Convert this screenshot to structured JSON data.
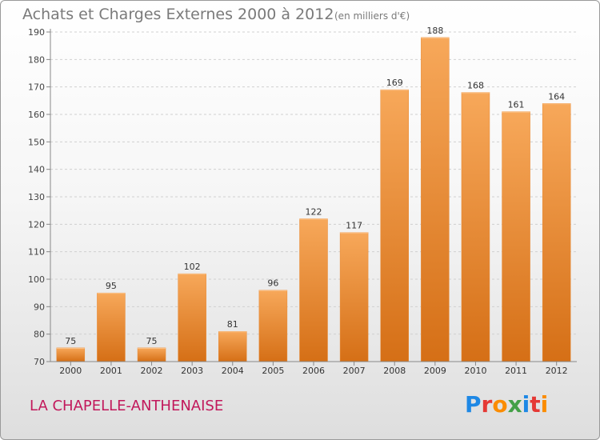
{
  "header": {
    "title": "Achats et Charges Externes 2000 à 2012",
    "unit": "(en milliers d'€)"
  },
  "footer": {
    "commune": "LA CHAPELLE-ANTHENAISE",
    "logo_letters": [
      "P",
      "r",
      "o",
      "x",
      "i",
      "t",
      "i"
    ],
    "logo_colors": [
      "#1e88e5",
      "#e53935",
      "#fb8c00",
      "#43a047",
      "#1e88e5",
      "#e53935",
      "#fb8c00"
    ]
  },
  "chart_data": {
    "type": "bar",
    "categories": [
      "2000",
      "2001",
      "2002",
      "2003",
      "2004",
      "2005",
      "2006",
      "2007",
      "2008",
      "2009",
      "2010",
      "2011",
      "2012"
    ],
    "values": [
      75,
      95,
      75,
      102,
      81,
      96,
      122,
      117,
      169,
      188,
      168,
      161,
      164
    ],
    "ylim": [
      70,
      190
    ],
    "yticks": [
      70,
      80,
      90,
      100,
      110,
      120,
      130,
      140,
      150,
      160,
      170,
      180,
      190
    ],
    "grid": true,
    "bar_color_top": "#f7a85a",
    "bar_color_bottom": "#d56f16",
    "axis_color": "#888888"
  }
}
